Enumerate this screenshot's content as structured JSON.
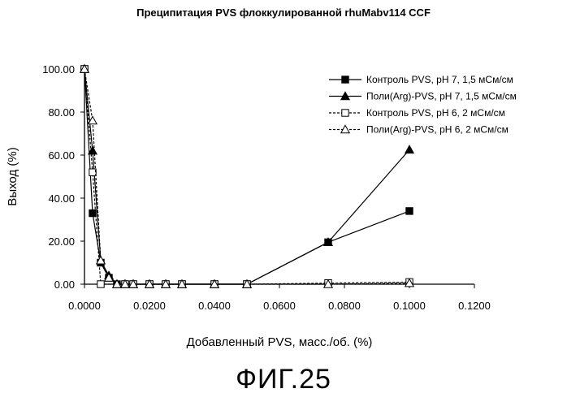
{
  "figure": {
    "title": "Преципитация PVS флоккулированной rhuMabv114 CCF",
    "label": "ФИГ.25"
  },
  "chart_data": {
    "type": "line",
    "title": "Преципитация PVS флоккулированной rhuMabv114 CCF",
    "xlabel": "Добавленный PVS, масс./об. (%)",
    "ylabel": "Выход (%)",
    "xlim": [
      0,
      0.12
    ],
    "ylim": [
      0,
      100
    ],
    "xticks": [
      "0.0000",
      "0.0200",
      "0.0400",
      "0.0600",
      "0.0800",
      "0.1000",
      "0.1200"
    ],
    "yticks": [
      "0.00",
      "20.00",
      "40.00",
      "60.00",
      "80.00",
      "100.00"
    ],
    "grid": false,
    "legend_position": "top-right",
    "series": [
      {
        "name": "Контроль PVS, pH 7, 1,5 мСм/см",
        "color": "#000000",
        "line": "solid",
        "marker": "filled-square",
        "points": [
          [
            0.0,
            100
          ],
          [
            0.0025,
            33
          ],
          [
            0.005,
            10
          ],
          [
            0.0075,
            3
          ],
          [
            0.01,
            0
          ],
          [
            0.0125,
            0
          ],
          [
            0.015,
            0
          ],
          [
            0.02,
            0
          ],
          [
            0.025,
            0
          ],
          [
            0.03,
            0
          ],
          [
            0.04,
            0
          ],
          [
            0.05,
            0
          ],
          [
            0.075,
            19.5
          ],
          [
            0.1,
            34
          ]
        ]
      },
      {
        "name": "Поли(Arg)-PVS, pH 7, 1,5 мСм/см",
        "color": "#000000",
        "line": "solid",
        "marker": "filled-triangle",
        "points": [
          [
            0.0,
            100
          ],
          [
            0.0025,
            62
          ],
          [
            0.005,
            11
          ],
          [
            0.0075,
            4
          ],
          [
            0.01,
            0
          ],
          [
            0.0125,
            0
          ],
          [
            0.015,
            0
          ],
          [
            0.02,
            0
          ],
          [
            0.025,
            0
          ],
          [
            0.03,
            0
          ],
          [
            0.04,
            0
          ],
          [
            0.05,
            0
          ],
          [
            0.075,
            19.5
          ],
          [
            0.1,
            62.5
          ]
        ]
      },
      {
        "name": "Контроль PVS, pH 6, 2 мСм/см",
        "color": "#000000",
        "line": "dashed",
        "marker": "open-square",
        "points": [
          [
            0.0,
            100
          ],
          [
            0.0025,
            52
          ],
          [
            0.005,
            0
          ],
          [
            0.0125,
            0
          ],
          [
            0.015,
            0
          ],
          [
            0.02,
            0
          ],
          [
            0.025,
            0
          ],
          [
            0.03,
            0
          ],
          [
            0.04,
            0
          ],
          [
            0.05,
            0
          ],
          [
            0.075,
            0.5
          ],
          [
            0.1,
            1
          ]
        ]
      },
      {
        "name": "Поли(Arg)-PVS, pH 6, 2 мСм/см",
        "color": "#000000",
        "line": "dashed",
        "marker": "open-triangle",
        "points": [
          [
            0.0,
            100
          ],
          [
            0.0025,
            76
          ],
          [
            0.005,
            11
          ],
          [
            0.0075,
            3
          ],
          [
            0.01,
            0
          ],
          [
            0.0125,
            0
          ],
          [
            0.015,
            0
          ],
          [
            0.02,
            0
          ],
          [
            0.025,
            0
          ],
          [
            0.03,
            0
          ],
          [
            0.04,
            0
          ],
          [
            0.05,
            0
          ],
          [
            0.075,
            0
          ],
          [
            0.1,
            0.5
          ]
        ]
      }
    ]
  }
}
